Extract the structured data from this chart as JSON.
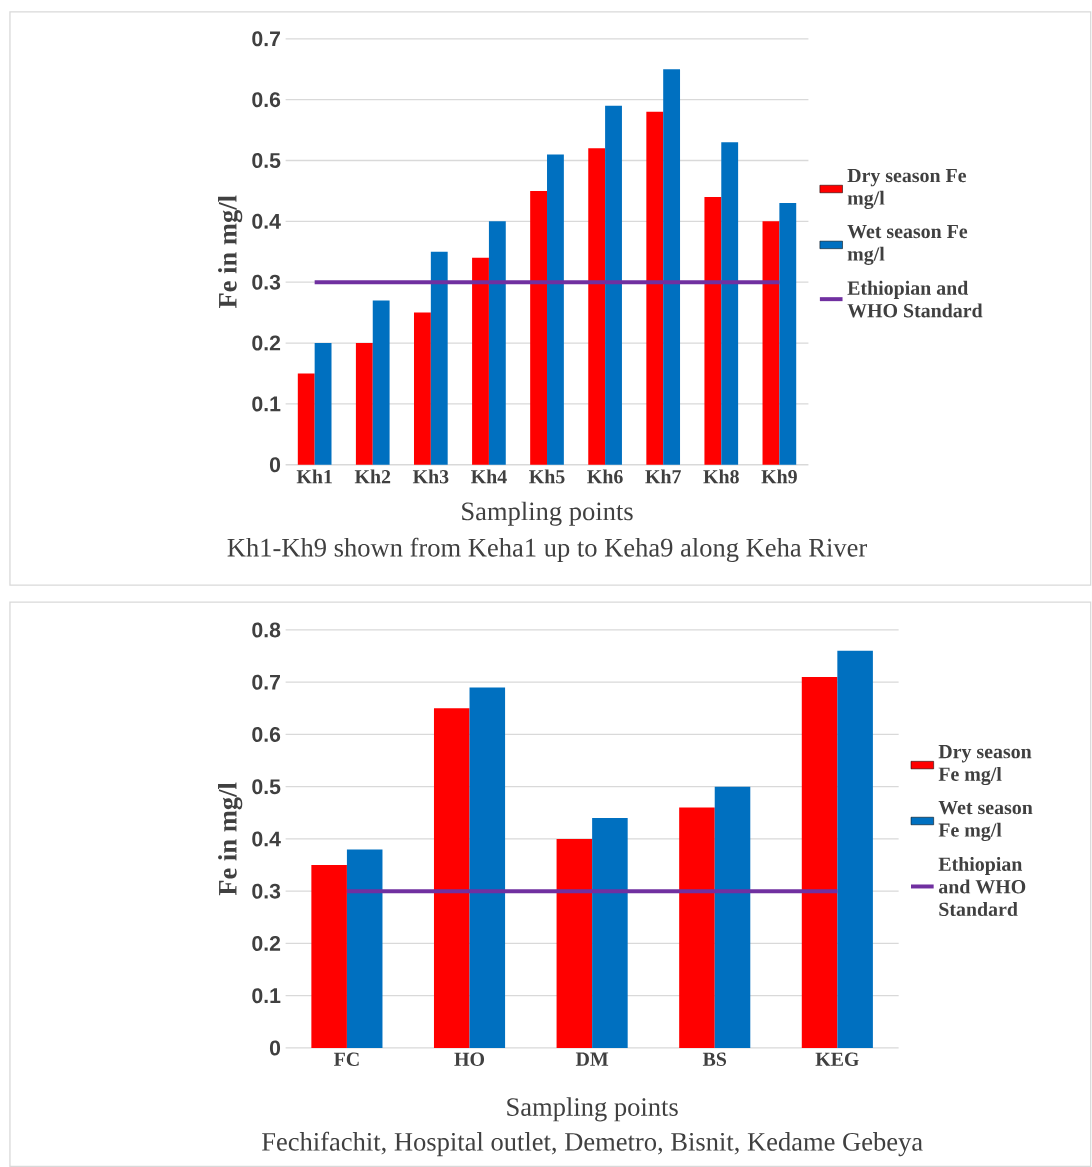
{
  "chart_data": [
    {
      "type": "bar",
      "xlabel": "Sampling points",
      "ylabel": "Fe in mg/l",
      "annotations": [
        "Kh1-Kh9 shown from Keha1 up to Keha9 along Keha River"
      ],
      "categories": [
        "Kh1",
        "Kh2",
        "Kh3",
        "Kh4",
        "Kh5",
        "Kh6",
        "Kh7",
        "Kh8",
        "Kh9"
      ],
      "series": [
        {
          "name": "Dry season Fe mg/l",
          "color": "#ff0000",
          "values": [
            0.15,
            0.2,
            0.25,
            0.34,
            0.45,
            0.52,
            0.58,
            0.44,
            0.4
          ]
        },
        {
          "name": "Wet season Fe mg/l",
          "color": "#0070c0",
          "values": [
            0.2,
            0.27,
            0.35,
            0.4,
            0.51,
            0.59,
            0.65,
            0.53,
            0.43
          ]
        },
        {
          "name": "Ethiopian and WHO Standard",
          "type": "line",
          "color": "#7030a0",
          "values": [
            0.3,
            0.3,
            0.3,
            0.3,
            0.3,
            0.3,
            0.3,
            0.3,
            0.3
          ]
        }
      ],
      "ylim": [
        0,
        0.7
      ],
      "yticks": [
        0,
        0.1,
        0.2,
        0.3,
        0.4,
        0.5,
        0.6,
        0.7
      ],
      "grid": "y",
      "legend": "right"
    },
    {
      "type": "bar",
      "xlabel": "Sampling points",
      "ylabel": "Fe in mg/l",
      "annotations": [
        "Fechifachit, Hospital outlet, Demetro, Bisnit, Kedame Gebeya"
      ],
      "categories": [
        "FC",
        "HO",
        "DM",
        "BS",
        "KEG"
      ],
      "series": [
        {
          "name": "Dry season Fe mg/l",
          "color": "#ff0000",
          "values": [
            0.35,
            0.65,
            0.4,
            0.46,
            0.71
          ]
        },
        {
          "name": "Wet season Fe mg/l",
          "color": "#0070c0",
          "values": [
            0.38,
            0.69,
            0.44,
            0.5,
            0.76
          ]
        },
        {
          "name": "Ethiopian and WHO Standard",
          "type": "line",
          "color": "#7030a0",
          "values": [
            0.3,
            0.3,
            0.3,
            0.3,
            0.3
          ]
        }
      ],
      "ylim": [
        0,
        0.8
      ],
      "yticks": [
        0,
        0.1,
        0.2,
        0.3,
        0.4,
        0.5,
        0.6,
        0.7,
        0.8
      ],
      "grid": "y",
      "legend": "right"
    }
  ]
}
